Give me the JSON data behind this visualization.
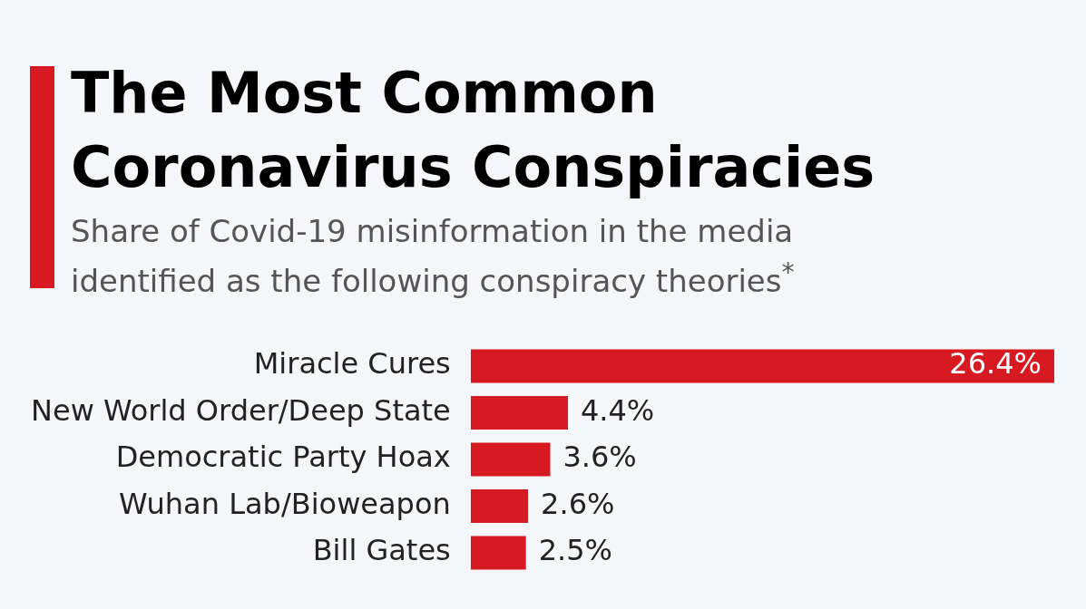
{
  "chart_data": {
    "type": "bar",
    "orientation": "horizontal",
    "title": "The Most Common Coronavirus Conspiracies",
    "subtitle": "Share of Covid-19 misinformation in the media identified as the following conspiracy theories$^{*}$",
    "categories": [
      "Miracle Cures",
      "New World Order/Deep State",
      "Democratic Party Hoax",
      "Wuhan Lab/Bioweapon",
      "Bill Gates"
    ],
    "values": [
      26.4,
      4.4,
      3.6,
      2.6,
      2.5
    ],
    "value_labels": [
      "26.4%",
      "4.4%",
      "3.6%",
      "2.6%",
      "2.5%"
    ],
    "color": "#d71921",
    "legend": false,
    "tick_labels": "y"
  }
}
